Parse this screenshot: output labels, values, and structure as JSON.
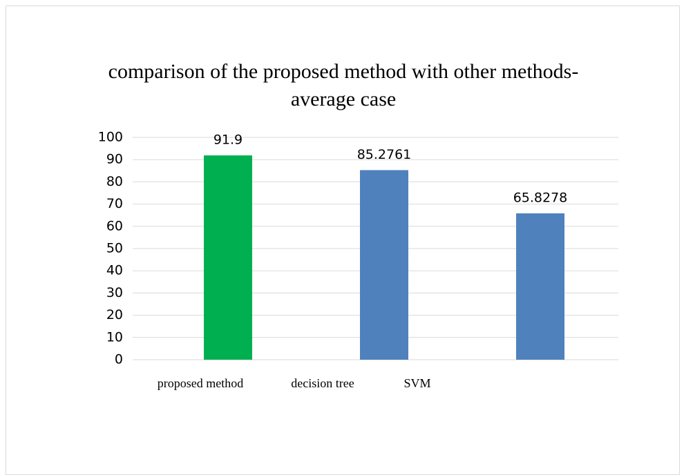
{
  "chart_data": {
    "type": "bar",
    "title": "comparison of the proposed method with other methods-average case",
    "categories": [
      "proposed method",
      "decision tree",
      "SVM"
    ],
    "values": [
      91.9,
      85.2761,
      65.8278
    ],
    "colors": [
      "#00b050",
      "#4f81bd",
      "#4f81bd"
    ],
    "ylim": [
      0,
      100
    ],
    "yticks": [
      0,
      10,
      20,
      30,
      40,
      50,
      60,
      70,
      80,
      90,
      100
    ],
    "grid": true
  }
}
